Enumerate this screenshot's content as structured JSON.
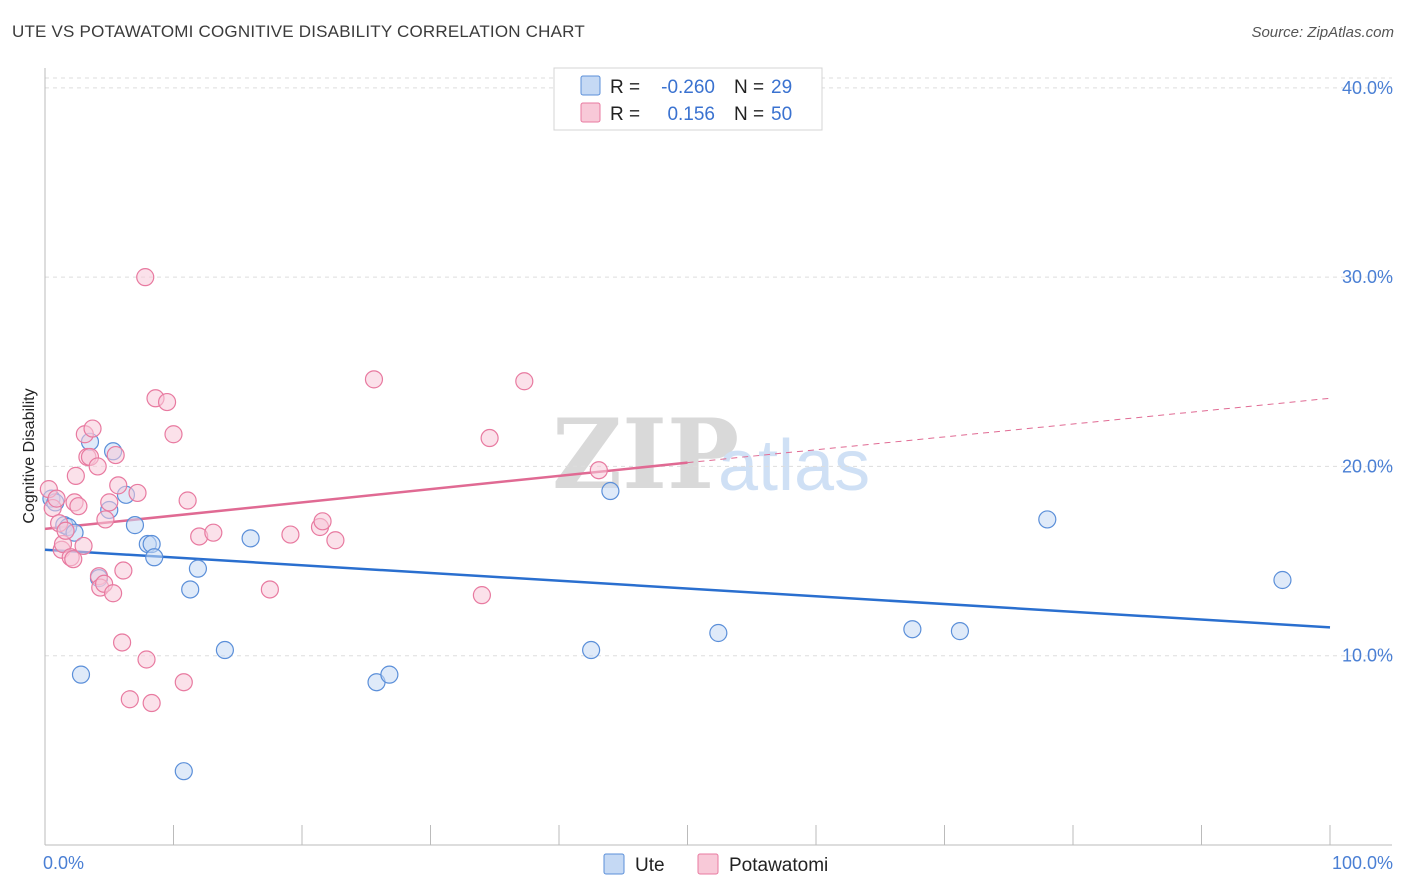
{
  "title": "UTE VS POTAWATOMI COGNITIVE DISABILITY CORRELATION CHART",
  "source": "Source: ZipAtlas.com",
  "watermark": {
    "zip": "ZIP",
    "atlas": "atlas"
  },
  "colors": {
    "ute": "#5b8fd9",
    "ute_fill": "#c5d9f4",
    "potawatomi": "#e87aa0",
    "potawatomi_fill": "#f8c9d8",
    "ute_line": "#2a6fcf",
    "potawatomi_line": "#e06a93",
    "tick_label": "#4a7fd4",
    "grid": "#dddddd"
  },
  "legend": {
    "rows": [
      {
        "series": "ute",
        "r_label": "R =",
        "r_value": "-0.260",
        "n_label": "N =",
        "n_value": "29"
      },
      {
        "series": "potawatomi",
        "r_label": "R =",
        "r_value": "0.156",
        "n_label": "N =",
        "n_value": "50"
      }
    ]
  },
  "bottom_legend": [
    {
      "series": "ute",
      "label": "Ute"
    },
    {
      "series": "potawatomi",
      "label": "Potawatomi"
    }
  ],
  "chart_data": {
    "type": "scatter",
    "title": "UTE VS POTAWATOMI COGNITIVE DISABILITY CORRELATION CHART",
    "xlabel": "",
    "ylabel": "Cognitive Disability",
    "xlim": [
      0,
      100
    ],
    "ylim": [
      0,
      42
    ],
    "x_tick_labels": [
      {
        "value": 0,
        "label": "0.0%"
      },
      {
        "value": 100,
        "label": "100.0%"
      }
    ],
    "y_tick_labels": [
      {
        "value": 10,
        "label": "10.0%"
      },
      {
        "value": 20,
        "label": "20.0%"
      },
      {
        "value": 30,
        "label": "30.0%"
      },
      {
        "value": 40,
        "label": "40.0%"
      }
    ],
    "x_minor_ticks": [
      0,
      10,
      20,
      30,
      40,
      50,
      60,
      70,
      80,
      90,
      100
    ],
    "gridlines": "horizontal dashed",
    "series": [
      {
        "name": "Ute",
        "key": "ute",
        "points": [
          [
            0.5,
            18.3
          ],
          [
            0.8,
            18.1
          ],
          [
            1.5,
            16.9
          ],
          [
            1.8,
            16.8
          ],
          [
            2.3,
            16.5
          ],
          [
            2.8,
            9.0
          ],
          [
            3.5,
            21.3
          ],
          [
            4.2,
            14.1
          ],
          [
            5.0,
            17.7
          ],
          [
            5.3,
            20.8
          ],
          [
            6.3,
            18.5
          ],
          [
            7.0,
            16.9
          ],
          [
            8.0,
            15.9
          ],
          [
            8.3,
            15.9
          ],
          [
            8.5,
            15.2
          ],
          [
            10.8,
            3.9
          ],
          [
            11.3,
            13.5
          ],
          [
            11.9,
            14.6
          ],
          [
            14.0,
            10.3
          ],
          [
            16.0,
            16.2
          ],
          [
            25.8,
            8.6
          ],
          [
            26.8,
            9.0
          ],
          [
            42.5,
            10.3
          ],
          [
            44.0,
            18.7
          ],
          [
            52.4,
            11.2
          ],
          [
            67.5,
            11.4
          ],
          [
            71.2,
            11.3
          ],
          [
            78.0,
            17.2
          ],
          [
            96.3,
            14.0
          ]
        ]
      },
      {
        "name": "Potawatomi",
        "key": "potawatomi",
        "points": [
          [
            0.3,
            18.8
          ],
          [
            0.6,
            17.8
          ],
          [
            0.9,
            18.3
          ],
          [
            1.1,
            17.0
          ],
          [
            1.3,
            15.6
          ],
          [
            1.4,
            15.9
          ],
          [
            1.6,
            16.6
          ],
          [
            2.0,
            15.2
          ],
          [
            2.2,
            15.1
          ],
          [
            2.3,
            18.1
          ],
          [
            2.4,
            19.5
          ],
          [
            2.6,
            17.9
          ],
          [
            3.0,
            15.8
          ],
          [
            3.1,
            21.7
          ],
          [
            3.3,
            20.5
          ],
          [
            3.5,
            20.5
          ],
          [
            3.7,
            22.0
          ],
          [
            4.1,
            20.0
          ],
          [
            4.2,
            14.2
          ],
          [
            4.3,
            13.6
          ],
          [
            4.6,
            13.8
          ],
          [
            4.7,
            17.2
          ],
          [
            5.0,
            18.1
          ],
          [
            5.3,
            13.3
          ],
          [
            5.5,
            20.6
          ],
          [
            5.7,
            19.0
          ],
          [
            6.0,
            10.7
          ],
          [
            6.1,
            14.5
          ],
          [
            6.6,
            7.7
          ],
          [
            7.2,
            18.6
          ],
          [
            7.8,
            30.0
          ],
          [
            7.9,
            9.8
          ],
          [
            8.3,
            7.5
          ],
          [
            8.6,
            23.6
          ],
          [
            9.5,
            23.4
          ],
          [
            10.0,
            21.7
          ],
          [
            10.8,
            8.6
          ],
          [
            11.1,
            18.2
          ],
          [
            12.0,
            16.3
          ],
          [
            13.1,
            16.5
          ],
          [
            17.5,
            13.5
          ],
          [
            19.1,
            16.4
          ],
          [
            21.4,
            16.8
          ],
          [
            21.6,
            17.1
          ],
          [
            22.6,
            16.1
          ],
          [
            25.6,
            24.6
          ],
          [
            34.0,
            13.2
          ],
          [
            34.6,
            21.5
          ],
          [
            37.3,
            24.5
          ],
          [
            43.1,
            19.8
          ]
        ]
      }
    ],
    "trend_lines": [
      {
        "series": "ute",
        "x0": 0,
        "y0": 15.6,
        "x1": 100,
        "y1": 11.5,
        "style": "solid"
      },
      {
        "series": "potawatomi",
        "x0": 0,
        "y0": 16.7,
        "x1": 50,
        "y1": 20.2,
        "style": "solid"
      },
      {
        "series": "potawatomi",
        "x0": 50,
        "y0": 20.2,
        "x1": 100,
        "y1": 23.6,
        "style": "dashed"
      }
    ]
  }
}
